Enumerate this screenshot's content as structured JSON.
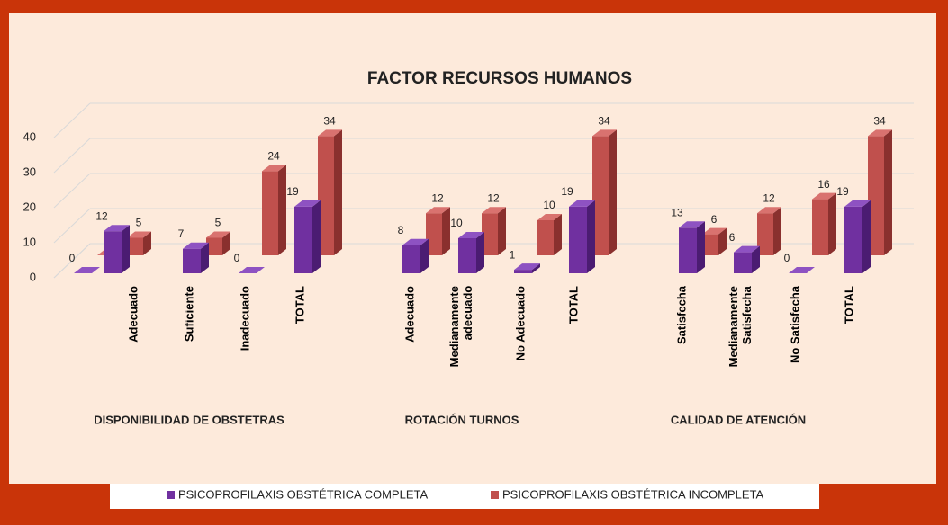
{
  "chart_data": {
    "type": "bar3d",
    "title": "FACTOR RECURSOS HUMANOS",
    "categories": [
      null,
      "Adecuado",
      "Suficiente",
      "Inadecuado",
      "TOTAL",
      "Adecuado",
      "Medianamente\nadecuado",
      "No Adecuado",
      "TOTAL",
      "Satisfecha",
      "Medianamente\nSatisfecha",
      "No Satisfecha",
      "TOTAL"
    ],
    "groups": [
      "DISPONIBILIDAD DE OBSTETRAS",
      "ROTACIÓN TURNOS",
      "CALIDAD DE ATENCIÓN"
    ],
    "series": [
      {
        "name": "PSICOPROFILAXIS OBSTÉTRICA COMPLETA",
        "color": "#7030a0",
        "values": [
          0,
          12,
          7,
          0,
          19,
          8,
          10,
          1,
          19,
          13,
          6,
          0,
          19
        ]
      },
      {
        "name": "PSICOPROFILAXIS OBSTÉTRICA INCOMPLETA",
        "color": "#c0504d",
        "values": [
          0,
          5,
          5,
          24,
          34,
          12,
          12,
          10,
          34,
          6,
          12,
          16,
          34
        ]
      }
    ],
    "ylim": [
      0,
      40
    ],
    "yticks": [
      0,
      10,
      20,
      30,
      40
    ],
    "grid": true,
    "legend": "bottom"
  }
}
